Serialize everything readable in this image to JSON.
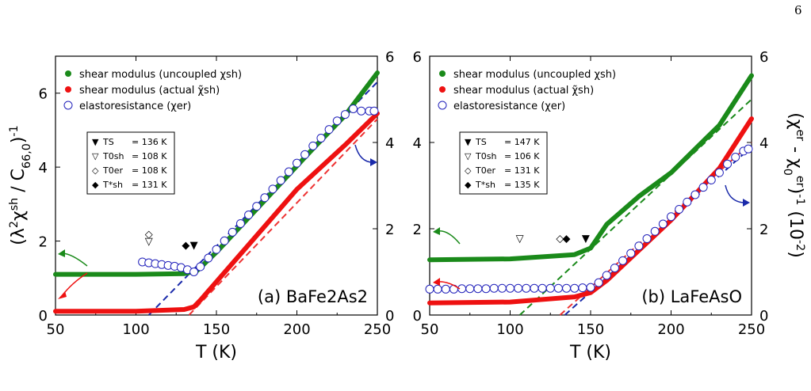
{
  "page_number": "6",
  "legend": {
    "green": "shear modulus (uncoupled χsh)",
    "red": "shear modulus (actual χ̃sh)",
    "circle": "elastoresistance (χer)"
  },
  "colors": {
    "green": "#1a8a1a",
    "red": "#ee1111",
    "circle": "#2222bb",
    "dash_blue": "#1a2aaa",
    "dash_green": "#1a8a1a",
    "dash_red": "#ee3333"
  },
  "left_axis_label": "(λ²χsh / C66,0)-1",
  "right_axis_label": "(χer - χ0er)-1 (10-2)",
  "charts": [
    {
      "panel_label": "(a) BaFe2As2",
      "xlabel": "T (K)",
      "annotation_rows": [
        {
          "symbol": "▼",
          "label": "TS",
          "value": "= 136 K"
        },
        {
          "symbol": "▽",
          "label": "T0sh",
          "value": "= 108 K"
        },
        {
          "symbol": "◇",
          "label": "T0er",
          "value": "= 108 K"
        },
        {
          "symbol": "◆",
          "label": "T*sh",
          "value": "= 131 K"
        }
      ]
    },
    {
      "panel_label": "(b) LaFeAsO",
      "xlabel": "T (K)",
      "annotation_rows": [
        {
          "symbol": "▼",
          "label": "TS",
          "value": "= 147 K"
        },
        {
          "symbol": "▽",
          "label": "T0sh",
          "value": "= 106 K"
        },
        {
          "symbol": "◇",
          "label": "T0er",
          "value": "= 131 K"
        },
        {
          "symbol": "◆",
          "label": "T*sh",
          "value": "= 135 K"
        }
      ]
    }
  ],
  "chart_data": [
    {
      "type": "line",
      "xlabel": "T (K)",
      "ylabel": "(λ²χsh / C66,0)-1",
      "y2label": "(χer - χ0er)-1 (10-2)",
      "xlim": [
        50,
        250
      ],
      "ylim": [
        0,
        7
      ],
      "y2lim": [
        0,
        6
      ],
      "xticks": [
        50,
        100,
        150,
        200,
        250
      ],
      "yticks": [
        0,
        2,
        4,
        6
      ],
      "y2ticks": [
        0,
        2,
        4,
        6
      ],
      "series": [
        {
          "name": "shear modulus (uncoupled χsh)",
          "axis": "left",
          "style": "line",
          "x": [
            50,
            100,
            130,
            138,
            150,
            180,
            210,
            230,
            250
          ],
          "y": [
            1.1,
            1.1,
            1.12,
            1.2,
            1.7,
            3.1,
            4.5,
            5.4,
            6.55
          ]
        },
        {
          "name": "shear modulus (actual χ̃sh)",
          "axis": "left",
          "style": "line",
          "x": [
            50,
            100,
            130,
            136,
            140,
            160,
            200,
            230,
            250
          ],
          "y": [
            0.1,
            0.1,
            0.15,
            0.22,
            0.4,
            1.4,
            3.4,
            4.6,
            5.45
          ]
        },
        {
          "name": "elastoresistance (χer)",
          "axis": "right",
          "style": "markers",
          "x": [
            104,
            108,
            112,
            116,
            120,
            124,
            128,
            132,
            136,
            140,
            145,
            150,
            155,
            160,
            165,
            170,
            175,
            180,
            185,
            190,
            195,
            200,
            205,
            210,
            215,
            220,
            225,
            230,
            235,
            240,
            245,
            248
          ],
          "y": [
            1.23,
            1.21,
            1.19,
            1.17,
            1.15,
            1.13,
            1.1,
            1.05,
            1.0,
            1.12,
            1.32,
            1.52,
            1.72,
            1.92,
            2.12,
            2.32,
            2.52,
            2.72,
            2.92,
            3.12,
            3.32,
            3.52,
            3.72,
            3.92,
            4.1,
            4.3,
            4.5,
            4.65,
            4.78,
            4.73,
            4.73,
            4.73
          ]
        }
      ],
      "fits": [
        {
          "color": "blue",
          "x": [
            108,
            250
          ],
          "y": [
            0,
            6.3
          ]
        },
        {
          "color": "red",
          "x": [
            133,
            250
          ],
          "y": [
            0,
            5.3
          ]
        }
      ],
      "markers_left": [
        {
          "symbol": "◇",
          "T": 108,
          "y": 2.1
        },
        {
          "symbol": "▽",
          "T": 108,
          "y": 1.9
        },
        {
          "symbol": "◆",
          "T": 131,
          "y": 1.8
        },
        {
          "symbol": "▼",
          "T": 136,
          "y": 1.8
        }
      ],
      "panel_label": "(a) BaFe2As2"
    },
    {
      "type": "line",
      "xlabel": "T (K)",
      "ylabel": "(λ²χsh / C66,0)-1",
      "y2label": "(χer - χ0er)-1 (10-2)",
      "xlim": [
        50,
        250
      ],
      "ylim": [
        0,
        6
      ],
      "y2lim": [
        0,
        6
      ],
      "xticks": [
        50,
        100,
        150,
        200,
        250
      ],
      "yticks": [
        0,
        2,
        4,
        6
      ],
      "y2ticks": [
        0,
        2,
        4,
        6
      ],
      "series": [
        {
          "name": "shear modulus (uncoupled χsh)",
          "axis": "left",
          "style": "line",
          "x": [
            50,
            100,
            140,
            150,
            160,
            180,
            200,
            230,
            250
          ],
          "y": [
            1.28,
            1.3,
            1.4,
            1.55,
            2.1,
            2.75,
            3.3,
            4.4,
            5.55
          ]
        },
        {
          "name": "shear modulus (actual χ̃sh)",
          "axis": "left",
          "style": "line",
          "x": [
            50,
            100,
            140,
            150,
            160,
            200,
            230,
            250
          ],
          "y": [
            0.28,
            0.3,
            0.42,
            0.52,
            0.8,
            2.2,
            3.4,
            4.55
          ]
        },
        {
          "name": "elastoresistance (χer)",
          "axis": "right",
          "style": "markers",
          "x": [
            50,
            55,
            60,
            65,
            70,
            75,
            80,
            85,
            90,
            95,
            100,
            105,
            110,
            115,
            120,
            125,
            130,
            135,
            140,
            145,
            150,
            155,
            160,
            165,
            170,
            175,
            180,
            185,
            190,
            195,
            200,
            205,
            210,
            215,
            220,
            225,
            230,
            235,
            240,
            245,
            248
          ],
          "y": [
            0.6,
            0.6,
            0.6,
            0.6,
            0.61,
            0.61,
            0.61,
            0.61,
            0.62,
            0.62,
            0.62,
            0.62,
            0.62,
            0.62,
            0.62,
            0.62,
            0.62,
            0.62,
            0.62,
            0.63,
            0.64,
            0.75,
            0.92,
            1.09,
            1.26,
            1.43,
            1.6,
            1.77,
            1.94,
            2.11,
            2.28,
            2.45,
            2.62,
            2.79,
            2.96,
            3.13,
            3.3,
            3.5,
            3.66,
            3.8,
            3.85
          ]
        }
      ],
      "fits": [
        {
          "color": "green",
          "x": [
            106,
            250
          ],
          "y": [
            0,
            5.0
          ]
        },
        {
          "color": "blue",
          "x": [
            134,
            250
          ],
          "y": [
            0,
            3.9
          ]
        },
        {
          "color": "red",
          "x": [
            131,
            250
          ],
          "y": [
            0,
            4.0
          ]
        }
      ],
      "markers_left": [
        {
          "symbol": "▽",
          "T": 106,
          "y": 1.7
        },
        {
          "symbol": "◇",
          "T": 131,
          "y": 1.7
        },
        {
          "symbol": "◆",
          "T": 135,
          "y": 1.7
        },
        {
          "symbol": "▼",
          "T": 147,
          "y": 1.7
        }
      ],
      "panel_label": "(b) LaFeAsO"
    }
  ]
}
